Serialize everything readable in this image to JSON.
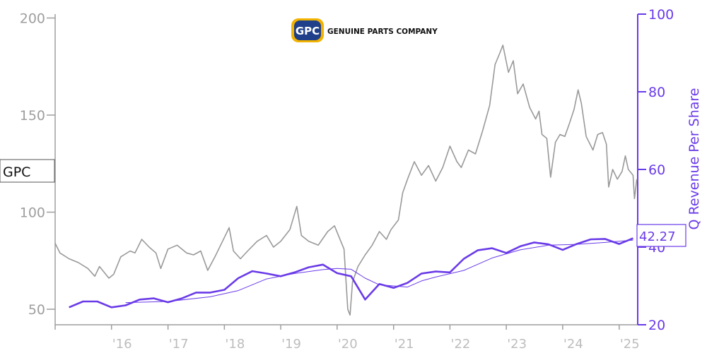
{
  "logo": {
    "badge_text": "GPC",
    "company_text": "GENUINE PARTS COMPANY",
    "badge_color": "#1f3f8a",
    "badge_outline": "#f2b300"
  },
  "chart_data": {
    "type": "line",
    "title": "",
    "ticker_label": "GPC",
    "x_range": [
      "2015-01-01",
      "2025-05-01"
    ],
    "x_ticks": [
      "'16",
      "'17",
      "'18",
      "'19",
      "'20",
      "'21",
      "'22",
      "'23",
      "'24",
      "'25"
    ],
    "left_axis": {
      "label": "",
      "ylim": [
        42,
        202
      ],
      "ticks": [
        50,
        100,
        150,
        200
      ]
    },
    "right_axis": {
      "label": "Q Revenue Per Share",
      "ylim": [
        20,
        100
      ],
      "ticks": [
        20,
        40,
        60,
        80,
        100
      ]
    },
    "last_value_label": "42.27",
    "colors": {
      "price": "#999999",
      "revenue": "#6a3be8",
      "axis": "#9e9e9e",
      "right_axis": "#6a3be8",
      "tick_label": "#bdbdbd"
    },
    "series": [
      {
        "axis": "left",
        "points": [
          [
            "2015-01-01",
            84
          ],
          [
            "2015-02-01",
            79
          ],
          [
            "2015-04-01",
            76
          ],
          [
            "2015-06-01",
            74
          ],
          [
            "2015-08-01",
            71
          ],
          [
            "2015-09-15",
            67
          ],
          [
            "2015-10-15",
            72
          ],
          [
            "2015-12-15",
            66
          ],
          [
            "2016-01-15",
            68
          ],
          [
            "2016-03-01",
            77
          ],
          [
            "2016-05-01",
            80
          ],
          [
            "2016-06-01",
            79
          ],
          [
            "2016-07-15",
            86
          ],
          [
            "2016-09-01",
            82
          ],
          [
            "2016-10-15",
            79
          ],
          [
            "2016-11-15",
            71
          ],
          [
            "2017-01-01",
            81
          ],
          [
            "2017-03-01",
            83
          ],
          [
            "2017-05-01",
            79
          ],
          [
            "2017-06-15",
            78
          ],
          [
            "2017-08-01",
            80
          ],
          [
            "2017-09-15",
            70
          ],
          [
            "2017-11-01",
            77
          ],
          [
            "2018-01-01",
            87
          ],
          [
            "2018-02-01",
            92
          ],
          [
            "2018-03-01",
            80
          ],
          [
            "2018-04-15",
            76
          ],
          [
            "2018-06-01",
            80
          ],
          [
            "2018-08-01",
            85
          ],
          [
            "2018-10-01",
            88
          ],
          [
            "2018-11-15",
            82
          ],
          [
            "2019-01-01",
            85
          ],
          [
            "2019-03-01",
            91
          ],
          [
            "2019-04-15",
            103
          ],
          [
            "2019-05-15",
            88
          ],
          [
            "2019-07-01",
            85
          ],
          [
            "2019-09-01",
            83
          ],
          [
            "2019-11-01",
            90
          ],
          [
            "2019-12-15",
            93
          ],
          [
            "2020-01-15",
            87
          ],
          [
            "2020-02-15",
            81
          ],
          [
            "2020-03-10",
            50
          ],
          [
            "2020-03-25",
            47
          ],
          [
            "2020-04-10",
            64
          ],
          [
            "2020-05-15",
            72
          ],
          [
            "2020-07-01",
            78
          ],
          [
            "2020-08-15",
            83
          ],
          [
            "2020-10-01",
            90
          ],
          [
            "2020-11-15",
            86
          ],
          [
            "2020-12-15",
            91
          ],
          [
            "2021-02-01",
            96
          ],
          [
            "2021-03-01",
            110
          ],
          [
            "2021-04-01",
            117
          ],
          [
            "2021-05-15",
            126
          ],
          [
            "2021-07-01",
            119
          ],
          [
            "2021-08-15",
            124
          ],
          [
            "2021-10-01",
            116
          ],
          [
            "2021-11-15",
            123
          ],
          [
            "2022-01-01",
            134
          ],
          [
            "2022-02-15",
            126
          ],
          [
            "2022-03-15",
            123
          ],
          [
            "2022-05-01",
            132
          ],
          [
            "2022-06-15",
            130
          ],
          [
            "2022-08-01",
            142
          ],
          [
            "2022-09-15",
            155
          ],
          [
            "2022-10-20",
            176
          ],
          [
            "2022-11-20",
            182
          ],
          [
            "2022-12-10",
            186
          ],
          [
            "2023-01-15",
            172
          ],
          [
            "2023-02-15",
            178
          ],
          [
            "2023-03-15",
            161
          ],
          [
            "2023-04-20",
            166
          ],
          [
            "2023-06-01",
            154
          ],
          [
            "2023-07-10",
            148
          ],
          [
            "2023-08-01",
            152
          ],
          [
            "2023-08-20",
            140
          ],
          [
            "2023-09-20",
            138
          ],
          [
            "2023-10-15",
            118
          ],
          [
            "2023-11-15",
            136
          ],
          [
            "2023-12-15",
            140
          ],
          [
            "2024-01-15",
            139
          ],
          [
            "2024-02-15",
            146
          ],
          [
            "2024-03-15",
            153
          ],
          [
            "2024-04-10",
            163
          ],
          [
            "2024-05-01",
            156
          ],
          [
            "2024-06-01",
            139
          ],
          [
            "2024-07-15",
            132
          ],
          [
            "2024-08-15",
            140
          ],
          [
            "2024-09-15",
            141
          ],
          [
            "2024-10-10",
            135
          ],
          [
            "2024-10-25",
            113
          ],
          [
            "2024-11-20",
            122
          ],
          [
            "2024-12-20",
            117
          ],
          [
            "2025-01-20",
            121
          ],
          [
            "2025-02-10",
            129
          ],
          [
            "2025-03-01",
            122
          ],
          [
            "2025-04-01",
            119
          ],
          [
            "2025-04-10",
            107
          ],
          [
            "2025-04-25",
            117
          ]
        ]
      },
      {
        "axis": "right",
        "name": "Q Revenue Per Share",
        "points": [
          [
            "2015-04-01",
            24.5
          ],
          [
            "2015-07-01",
            26.0
          ],
          [
            "2015-10-01",
            26.0
          ],
          [
            "2016-01-01",
            24.5
          ],
          [
            "2016-04-01",
            25.0
          ],
          [
            "2016-07-01",
            26.5
          ],
          [
            "2016-10-01",
            26.8
          ],
          [
            "2017-01-01",
            25.8
          ],
          [
            "2017-04-01",
            26.8
          ],
          [
            "2017-07-01",
            28.3
          ],
          [
            "2017-10-01",
            28.3
          ],
          [
            "2018-01-01",
            29.0
          ],
          [
            "2018-04-01",
            32.0
          ],
          [
            "2018-07-01",
            33.8
          ],
          [
            "2018-10-01",
            33.2
          ],
          [
            "2019-01-01",
            32.5
          ],
          [
            "2019-04-01",
            33.5
          ],
          [
            "2019-07-01",
            34.8
          ],
          [
            "2019-10-01",
            35.5
          ],
          [
            "2020-01-01",
            33.3
          ],
          [
            "2020-04-01",
            32.5
          ],
          [
            "2020-07-01",
            26.5
          ],
          [
            "2020-10-01",
            30.5
          ],
          [
            "2021-01-01",
            29.5
          ],
          [
            "2021-04-01",
            30.8
          ],
          [
            "2021-07-01",
            33.2
          ],
          [
            "2021-10-01",
            33.7
          ],
          [
            "2022-01-01",
            33.5
          ],
          [
            "2022-04-01",
            37.0
          ],
          [
            "2022-07-01",
            39.2
          ],
          [
            "2022-10-01",
            39.7
          ],
          [
            "2023-01-01",
            38.5
          ],
          [
            "2023-04-01",
            40.2
          ],
          [
            "2023-07-01",
            41.2
          ],
          [
            "2023-10-01",
            40.7
          ],
          [
            "2024-01-01",
            39.3
          ],
          [
            "2024-04-01",
            40.8
          ],
          [
            "2024-07-01",
            42.0
          ],
          [
            "2024-10-01",
            42.1
          ],
          [
            "2025-01-01",
            40.8
          ],
          [
            "2025-04-01",
            42.27
          ]
        ]
      },
      {
        "axis": "right",
        "style": "thin",
        "points": [
          [
            "2016-04-01",
            25.7
          ],
          [
            "2017-01-01",
            26.0
          ],
          [
            "2017-10-01",
            27.2
          ],
          [
            "2018-04-01",
            28.8
          ],
          [
            "2018-10-01",
            31.8
          ],
          [
            "2019-04-01",
            33.2
          ],
          [
            "2019-10-01",
            34.2
          ],
          [
            "2020-01-01",
            34.5
          ],
          [
            "2020-04-01",
            34.3
          ],
          [
            "2020-07-01",
            32.0
          ],
          [
            "2020-10-01",
            30.3
          ],
          [
            "2021-04-01",
            29.7
          ],
          [
            "2021-07-01",
            31.3
          ],
          [
            "2021-10-01",
            32.3
          ],
          [
            "2022-04-01",
            34.0
          ],
          [
            "2022-10-01",
            37.2
          ],
          [
            "2023-04-01",
            39.3
          ],
          [
            "2023-10-01",
            40.5
          ],
          [
            "2024-04-01",
            40.7
          ],
          [
            "2024-10-01",
            41.2
          ],
          [
            "2025-04-01",
            41.8
          ]
        ]
      }
    ]
  }
}
